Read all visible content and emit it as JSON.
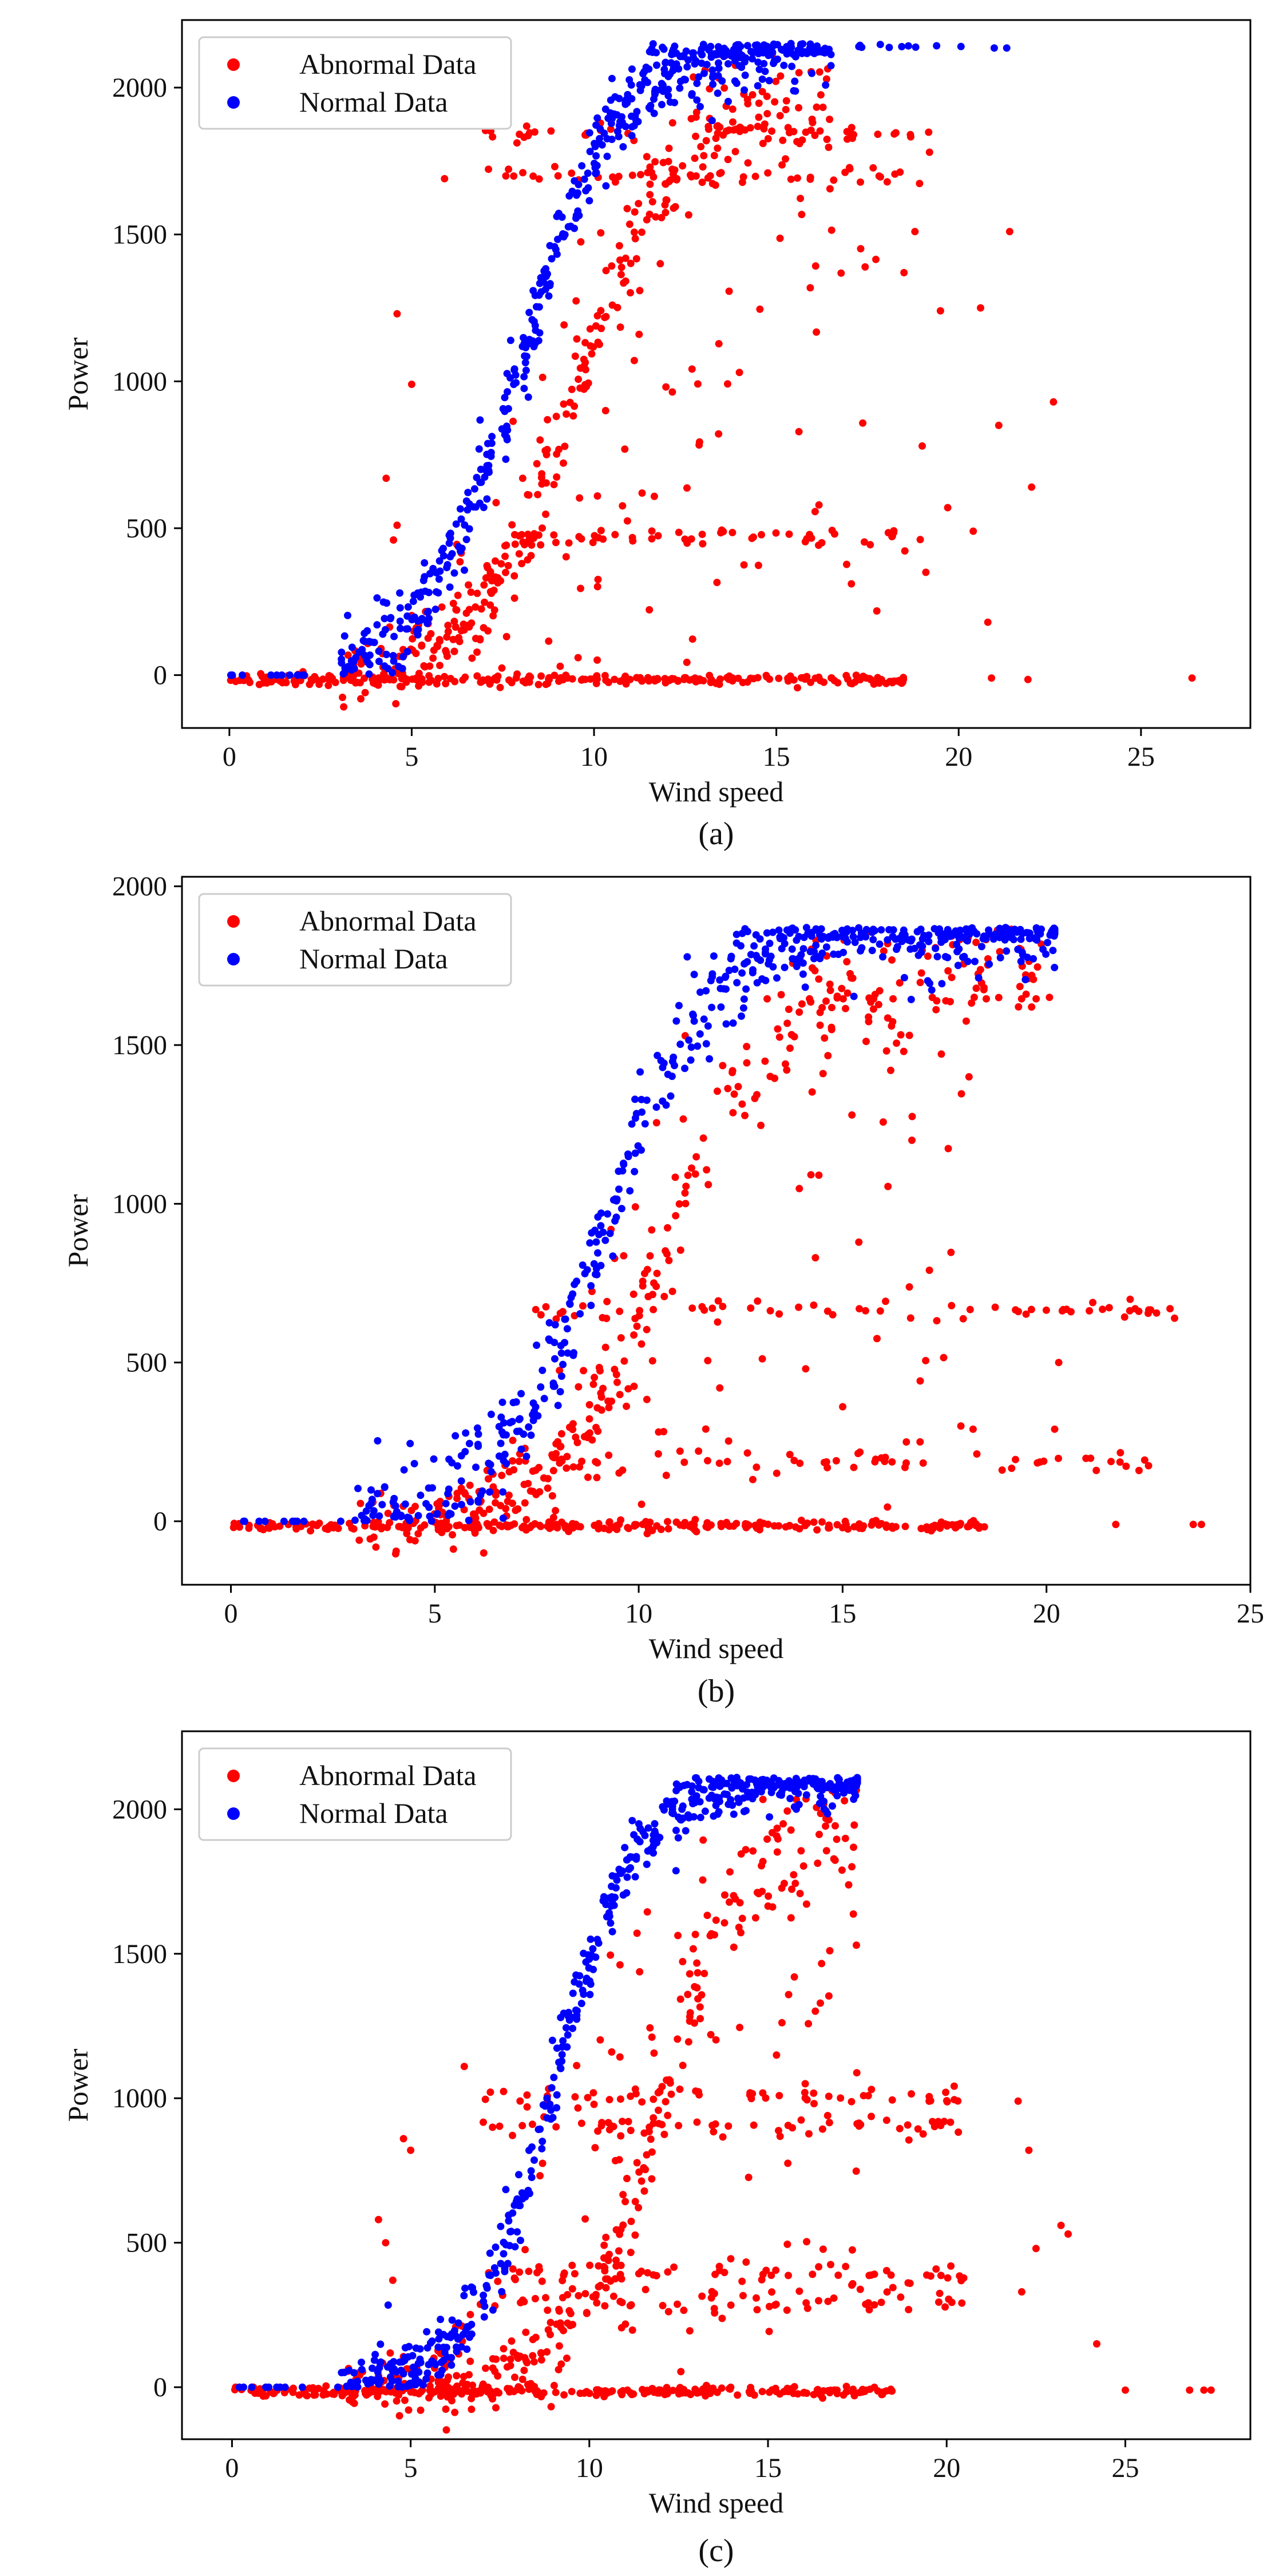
{
  "chart_data": [
    {
      "type": "scatter",
      "panel": "(a)",
      "caption": "(a)",
      "xlabel": "Wind speed",
      "ylabel": "Power",
      "xlim": [
        -1.3,
        28.0
      ],
      "ylim": [
        -180,
        2230
      ],
      "xticks": [
        0,
        5,
        10,
        15,
        20,
        25
      ],
      "yticks": [
        0,
        500,
        1000,
        1500,
        2000
      ],
      "legend_position": "top-left",
      "series": [
        {
          "name": "Abnormal Data",
          "color": "#ff0000"
        },
        {
          "name": "Normal Data",
          "color": "#0000ff"
        }
      ],
      "normal_curve": {
        "v_min": 3.0,
        "v_mid": 8.0,
        "steepness": 0.75,
        "rated": 2150,
        "band": 200,
        "v_max": 16.5,
        "rated_ws_max": 21.5
      },
      "abnormal_plateaus": [
        470,
        1700,
        1850
      ],
      "shifted_curve_offset": 1.6,
      "sparse_outliers": [
        [
          5.9,
          1690
        ],
        [
          4.6,
          1230
        ],
        [
          5.0,
          990
        ],
        [
          4.3,
          670
        ],
        [
          4.5,
          460
        ],
        [
          4.6,
          510
        ],
        [
          19.2,
          1780
        ],
        [
          21.4,
          1510
        ],
        [
          18.8,
          1510
        ],
        [
          18.5,
          1370
        ],
        [
          19.5,
          1240
        ],
        [
          20.6,
          1250
        ],
        [
          21.1,
          850
        ],
        [
          22.6,
          930
        ],
        [
          22.0,
          640
        ],
        [
          19.0,
          780
        ],
        [
          19.7,
          570
        ],
        [
          19.1,
          350
        ],
        [
          20.4,
          490
        ],
        [
          20.8,
          180
        ],
        [
          26.4,
          -10
        ],
        [
          21.9,
          -15
        ],
        [
          20.9,
          -10
        ]
      ]
    },
    {
      "type": "scatter",
      "panel": "(b)",
      "caption": "(b)",
      "xlabel": "Wind speed",
      "ylabel": "Power",
      "xlim": [
        -1.2,
        25.0
      ],
      "ylim": [
        -200,
        2030
      ],
      "xticks": [
        0,
        5,
        10,
        15,
        20,
        25
      ],
      "yticks": [
        0,
        500,
        1000,
        1500,
        2000
      ],
      "legend_position": "top-left",
      "series": [
        {
          "name": "Abnormal Data",
          "color": "#ff0000"
        },
        {
          "name": "Normal Data",
          "color": "#0000ff"
        }
      ],
      "normal_curve": {
        "v_min": 3.0,
        "v_mid": 9.2,
        "steepness": 0.78,
        "rated": 1870,
        "band": 230,
        "v_max": 20.2,
        "rated_ws_max": 20.2
      },
      "abnormal_plateaus": [
        670,
        190
      ],
      "shifted_curve_offset": 1.5,
      "sparse_outliers": [
        [
          17.2,
          1650
        ],
        [
          18.1,
          1400
        ],
        [
          16.5,
          1480
        ],
        [
          16.7,
          1200
        ],
        [
          19.5,
          1660
        ],
        [
          16.2,
          1560
        ],
        [
          20.6,
          660
        ],
        [
          20.3,
          500
        ],
        [
          20.2,
          290
        ],
        [
          23.6,
          -10
        ],
        [
          23.8,
          -10
        ],
        [
          21.7,
          -10
        ],
        [
          6.2,
          -100
        ],
        [
          17.9,
          300
        ],
        [
          18.2,
          290
        ],
        [
          16.9,
          250
        ]
      ]
    },
    {
      "type": "scatter",
      "panel": "(c)",
      "caption": "(c)",
      "xlabel": "Wind speed",
      "ylabel": "Power",
      "xlim": [
        -1.4,
        28.5
      ],
      "ylim": [
        -180,
        2270
      ],
      "xticks": [
        0,
        5,
        10,
        15,
        20,
        25
      ],
      "yticks": [
        0,
        500,
        1000,
        1500,
        2000
      ],
      "legend_position": "top-left",
      "series": [
        {
          "name": "Abnormal Data",
          "color": "#ff0000"
        },
        {
          "name": "Normal Data",
          "color": "#0000ff"
        }
      ],
      "normal_curve": {
        "v_min": 3.0,
        "v_mid": 9.0,
        "steepness": 0.85,
        "rated": 2110,
        "band": 170,
        "v_max": 17.5,
        "rated_ws_max": 17.5
      },
      "abnormal_plateaus": [
        1000,
        900,
        390,
        300
      ],
      "shifted_curve_offset": 3.0,
      "sparse_outliers": [
        [
          4.8,
          860
        ],
        [
          5.0,
          820
        ],
        [
          6.5,
          1110
        ],
        [
          4.1,
          580
        ],
        [
          4.3,
          500
        ],
        [
          4.5,
          370
        ],
        [
          23.2,
          560
        ],
        [
          23.4,
          530
        ],
        [
          22.3,
          820
        ],
        [
          22.0,
          990
        ],
        [
          24.2,
          150
        ],
        [
          22.5,
          480
        ],
        [
          22.1,
          330
        ],
        [
          26.8,
          -10
        ],
        [
          27.4,
          -10
        ],
        [
          27.2,
          -10
        ],
        [
          25.0,
          -10
        ],
        [
          0.6,
          0
        ],
        [
          0.1,
          0
        ]
      ]
    }
  ]
}
